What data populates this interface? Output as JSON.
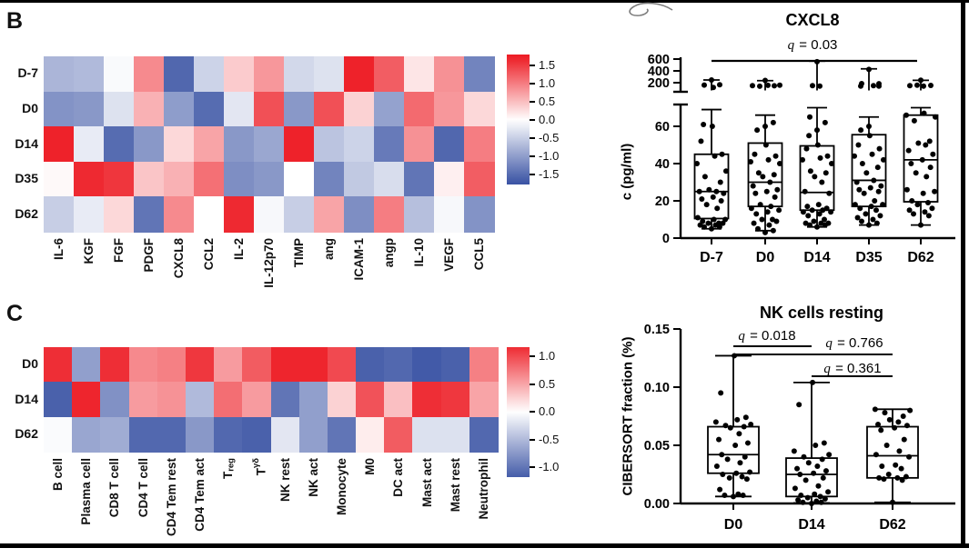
{
  "panels": {
    "b_label": "B",
    "c_label": "C"
  },
  "colors": {
    "heat_red": "#ED1C24",
    "heat_blue": "#3A53A4",
    "point_black": "#000000"
  },
  "chart_data": [
    {
      "id": "heatmap_b",
      "type": "heatmap",
      "panel": "B",
      "rows": [
        "D-7",
        "D0",
        "D14",
        "D35",
        "D62"
      ],
      "cols": [
        "IL-6",
        "KGF",
        "FGF",
        "PDGF",
        "CXCL8",
        "CCL2",
        "IL-2",
        "IL-12p70",
        "TIMP",
        "ang",
        "ICAM-1",
        "angp",
        "IL-10",
        "VEGF",
        "CCL5"
      ],
      "values": [
        [
          -0.75,
          -0.7,
          -0.05,
          0.9,
          -1.55,
          -0.45,
          0.4,
          0.8,
          -0.4,
          -0.3,
          1.7,
          1.25,
          0.2,
          0.85,
          -1.25
        ],
        [
          -1.1,
          -1.05,
          -0.3,
          0.6,
          -1.0,
          -1.5,
          -0.25,
          1.35,
          -1.05,
          1.35,
          0.35,
          -0.95,
          1.15,
          0.8,
          0.3
        ],
        [
          1.7,
          -0.2,
          -1.5,
          -1.05,
          0.3,
          0.7,
          -1.05,
          -0.9,
          1.7,
          -0.6,
          -0.45,
          -1.35,
          0.85,
          -1.55,
          1.0
        ],
        [
          0.05,
          1.65,
          1.55,
          0.45,
          0.6,
          1.1,
          -1.15,
          -1.05,
          0.0,
          -1.25,
          -0.55,
          -0.35,
          -1.4,
          0.12,
          1.25
        ],
        [
          -0.5,
          -0.2,
          0.3,
          -1.4,
          0.9,
          0.0,
          1.65,
          -0.07,
          -0.5,
          0.7,
          -1.15,
          1.0,
          -0.65,
          -0.07,
          -1.1
        ]
      ],
      "color_scale": {
        "tick_labels": [
          "1.5",
          "1.0",
          "0.5",
          "0.0",
          "-0.5",
          "-1.0",
          "-1.5"
        ],
        "saturation": 1.75
      }
    },
    {
      "id": "cxcl8",
      "type": "box",
      "title": "CXCL8",
      "comparison_label": "q = 0.03",
      "ylabel": "c (pg/ml)",
      "y_axis_break": true,
      "upper_ticks": [
        600,
        400,
        200
      ],
      "lower_ticks": [
        60,
        40,
        20,
        0
      ],
      "categories": [
        "D-7",
        "D0",
        "D14",
        "D35",
        "D62"
      ],
      "boxes": [
        {
          "lo": 5,
          "q1": 10.5,
          "median": 25,
          "q3": 45,
          "hi": 69
        },
        {
          "lo": 4,
          "q1": 17,
          "median": 30,
          "q3": 51,
          "hi": 66
        },
        {
          "lo": 6,
          "q1": 15,
          "median": 24.5,
          "q3": 49.5,
          "hi": 70
        },
        {
          "lo": 7,
          "q1": 17,
          "median": 31,
          "q3": 55.5,
          "hi": 65
        },
        {
          "lo": 7,
          "q1": 19.5,
          "median": 42,
          "q3": 66,
          "hi": 70
        }
      ],
      "points": [
        [
          5,
          6,
          6,
          7,
          7,
          8,
          8,
          8,
          9,
          10,
          10,
          11,
          16,
          18,
          20,
          21,
          22,
          24,
          25,
          25,
          26,
          30,
          33,
          36,
          40,
          44,
          45,
          52,
          60,
          61
        ],
        [
          3,
          4,
          5,
          7,
          8,
          9,
          10,
          10,
          13,
          14,
          15,
          16,
          17,
          18,
          22,
          24,
          25,
          26,
          28,
          30,
          33,
          34,
          35,
          40,
          41,
          42,
          44,
          45,
          50,
          58,
          60,
          62
        ],
        [
          6,
          7,
          7,
          8,
          8,
          8,
          9,
          10,
          12,
          13,
          14,
          14,
          15,
          15,
          16,
          17,
          18,
          24,
          25,
          30,
          33,
          35,
          36,
          40,
          42,
          43,
          44,
          48,
          50,
          55,
          58,
          62,
          65
        ],
        [
          7,
          8,
          9,
          10,
          11,
          12,
          13,
          15,
          16,
          17,
          18,
          18,
          20,
          24,
          25,
          26,
          27,
          28,
          30,
          31,
          35,
          38,
          40,
          42,
          44,
          45,
          48,
          50,
          55,
          58,
          60
        ],
        [
          7,
          12,
          13,
          14,
          15,
          16,
          18,
          19,
          20,
          24,
          25,
          26,
          33,
          35,
          38,
          40,
          42,
          45,
          47,
          50,
          51,
          52,
          63,
          65,
          66,
          67
        ]
      ],
      "upper_caps": [
        246,
        235,
        565,
        435,
        240
      ],
      "upper_points": [
        [
          [
            0,
            246
          ],
          [
            -8,
            160
          ],
          [
            2,
            120
          ],
          [
            9,
            165
          ]
        ],
        [
          [
            -14,
            150
          ],
          [
            -6,
            140
          ],
          [
            0,
            238
          ],
          [
            3,
            155
          ],
          [
            10,
            148
          ],
          [
            16,
            158
          ]
        ],
        [
          [
            -5,
            150
          ],
          [
            3,
            142
          ],
          [
            0,
            555
          ]
        ],
        [
          [
            -8,
            185
          ],
          [
            -9,
            142
          ],
          [
            0,
            425
          ],
          [
            5,
            150
          ],
          [
            11,
            182
          ],
          [
            11,
            143
          ]
        ],
        [
          [
            -12,
            150
          ],
          [
            -4,
            158
          ],
          [
            0,
            242
          ],
          [
            3,
            143
          ],
          [
            11,
            153
          ]
        ]
      ]
    },
    {
      "id": "heatmap_c",
      "type": "heatmap",
      "panel": "C",
      "rows": [
        "D0",
        "D14",
        "D62"
      ],
      "cols": [
        {
          "text": "B cell"
        },
        {
          "text": "Plasma cell"
        },
        {
          "text": "CD8 T cell"
        },
        {
          "text": "CD4 T cell"
        },
        {
          "text": "CD4 Tem rest"
        },
        {
          "text": "CD4 Tem act"
        },
        {
          "text": "T",
          "sub": "reg"
        },
        {
          "text": "T",
          "sup": "γδ"
        },
        {
          "text": "NK rest"
        },
        {
          "text": "NK act"
        },
        {
          "text": "Monocyte"
        },
        {
          "text": "M0"
        },
        {
          "text": "DC act"
        },
        {
          "text": "Mast act"
        },
        {
          "text": "Mast rest"
        },
        {
          "text": "Neutrophil"
        }
      ],
      "values": [
        [
          1.15,
          -0.7,
          1.15,
          0.65,
          0.7,
          1.1,
          0.55,
          0.9,
          1.2,
          1.2,
          1.0,
          -1.15,
          -1.1,
          -1.2,
          -1.15,
          0.7
        ],
        [
          -1.15,
          1.2,
          -0.8,
          0.55,
          0.6,
          -0.5,
          0.8,
          0.55,
          -1.0,
          -0.7,
          0.25,
          0.95,
          0.35,
          1.15,
          1.1,
          0.5
        ],
        [
          -0.03,
          -0.65,
          -0.6,
          -1.1,
          -1.1,
          -0.75,
          -1.1,
          -1.15,
          -0.18,
          -0.7,
          -1.0,
          0.1,
          0.9,
          -0.22,
          -0.22,
          -1.1
        ]
      ],
      "color_scale": {
        "tick_labels": [
          "1.0",
          "0.5",
          "0.0",
          "-0.5",
          "-1.0"
        ],
        "saturation": 1.25
      }
    },
    {
      "id": "nk",
      "type": "box",
      "title": "NK cells resting",
      "ylabel": "CIBERSORT fraction (%)",
      "yticks": [
        {
          "label": "0.15",
          "value": 0.15
        },
        {
          "label": "0.10",
          "value": 0.1
        },
        {
          "label": "0.05",
          "value": 0.05
        },
        {
          "label": "0.00",
          "value": 0.0
        }
      ],
      "categories": [
        "D0",
        "D14",
        "D62"
      ],
      "boxes": [
        {
          "lo": 0.006,
          "q1": 0.026,
          "median": 0.042,
          "q3": 0.066,
          "hi": 0.127
        },
        {
          "lo": 0.0005,
          "q1": 0.006,
          "median": 0.025,
          "q3": 0.039,
          "hi": 0.104
        },
        {
          "lo": 0.001,
          "q1": 0.022,
          "median": 0.041,
          "q3": 0.066,
          "hi": 0.081
        }
      ],
      "points": [
        [
          0.006,
          0.007,
          0.007,
          0.008,
          0.012,
          0.021,
          0.022,
          0.023,
          0.025,
          0.026,
          0.027,
          0.032,
          0.035,
          0.038,
          0.04,
          0.042,
          0.05,
          0.052,
          0.055,
          0.06,
          0.065,
          0.066,
          0.067,
          0.068,
          0.07,
          0.072,
          0.074,
          0.095,
          0.127
        ],
        [
          0.0,
          0.001,
          0.001,
          0.002,
          0.003,
          0.004,
          0.005,
          0.006,
          0.007,
          0.008,
          0.01,
          0.013,
          0.015,
          0.02,
          0.022,
          0.025,
          0.026,
          0.028,
          0.03,
          0.032,
          0.035,
          0.038,
          0.04,
          0.042,
          0.045,
          0.05,
          0.052,
          0.085,
          0.104
        ],
        [
          0.001,
          0.02,
          0.021,
          0.022,
          0.022,
          0.023,
          0.025,
          0.03,
          0.032,
          0.033,
          0.04,
          0.042,
          0.045,
          0.05,
          0.055,
          0.063,
          0.065,
          0.067,
          0.068,
          0.07,
          0.072,
          0.075,
          0.078,
          0.08,
          0.081
        ]
      ],
      "comparisons": [
        {
          "label": "q = 0.018",
          "from": 0,
          "to": 1
        },
        {
          "label": "q = 0.766",
          "from": 0,
          "to": 2
        },
        {
          "label": "q = 0.361",
          "from": 1,
          "to": 2
        }
      ]
    }
  ]
}
